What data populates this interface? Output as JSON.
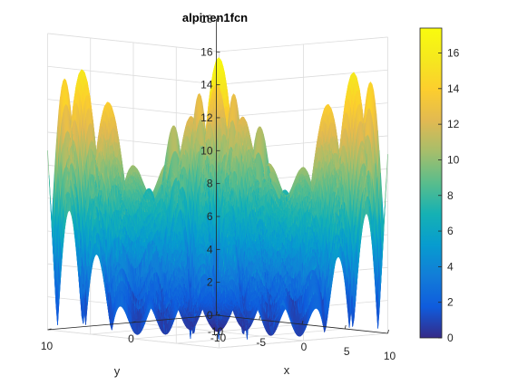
{
  "chart_data": {
    "type": "surface",
    "title": "alpinen1fcn",
    "xlabel": "x",
    "ylabel": "y",
    "zlabel": "",
    "function": "alpinen1fcn",
    "x_range": [
      -10,
      10
    ],
    "y_range": [
      -10,
      10
    ],
    "z_range": [
      0,
      18
    ],
    "z_ticks": [
      0,
      2,
      4,
      6,
      8,
      10,
      12,
      14,
      16,
      18
    ],
    "x_ticks": [
      -10,
      -5,
      0,
      5,
      10
    ],
    "y_ticks": [
      10,
      0,
      -10
    ],
    "x_tick_labels": [
      "-10",
      "-5",
      "0",
      "5",
      "10"
    ],
    "y_tick_labels": [
      "10",
      "0",
      "-10"
    ],
    "z_tick_labels": [
      "0",
      "2",
      "4",
      "6",
      "8",
      "10",
      "12",
      "14",
      "16",
      "18"
    ],
    "colorbar": {
      "range": [
        0,
        17.4
      ],
      "ticks": [
        0,
        2,
        4,
        6,
        8,
        10,
        12,
        14,
        16
      ],
      "tick_labels": [
        "0",
        "2",
        "4",
        "6",
        "8",
        "10",
        "12",
        "14",
        "16"
      ],
      "colormap": "parula"
    },
    "grid": true,
    "view": "3d"
  }
}
